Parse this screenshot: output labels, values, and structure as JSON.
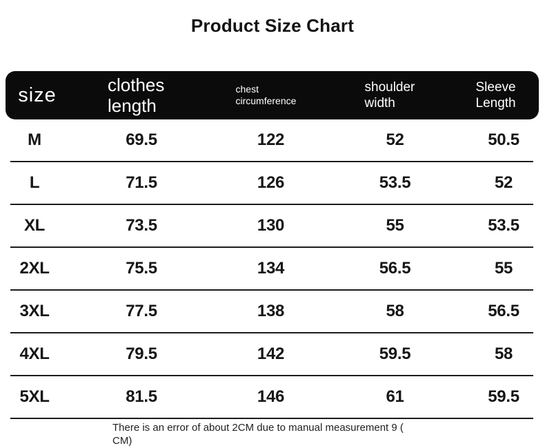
{
  "title": "Product Size Chart",
  "table": {
    "headers": [
      {
        "label": "size"
      },
      {
        "label": "clothes length"
      },
      {
        "label": "chest circumference"
      },
      {
        "label": "shoulder width"
      },
      {
        "label": "Sleeve Length"
      }
    ],
    "rows": [
      {
        "size": "M",
        "clothes_length": "69.5",
        "chest_circumference": "122",
        "shoulder_width": "52",
        "sleeve_length": "50.5"
      },
      {
        "size": "L",
        "clothes_length": "71.5",
        "chest_circumference": "126",
        "shoulder_width": "53.5",
        "sleeve_length": "52"
      },
      {
        "size": "XL",
        "clothes_length": "73.5",
        "chest_circumference": "130",
        "shoulder_width": "55",
        "sleeve_length": "53.5"
      },
      {
        "size": "2XL",
        "clothes_length": "75.5",
        "chest_circumference": "134",
        "shoulder_width": "56.5",
        "sleeve_length": "55"
      },
      {
        "size": "3XL",
        "clothes_length": "77.5",
        "chest_circumference": "138",
        "shoulder_width": "58",
        "sleeve_length": "56.5"
      },
      {
        "size": "4XL",
        "clothes_length": "79.5",
        "chest_circumference": "142",
        "shoulder_width": "59.5",
        "sleeve_length": "58"
      },
      {
        "size": "5XL",
        "clothes_length": "81.5",
        "chest_circumference": "146",
        "shoulder_width": "61",
        "sleeve_length": "59.5"
      }
    ]
  },
  "footer": {
    "line1": "There is an error of about 2CM due to manual measurement 9 (",
    "line2": "CM)"
  },
  "colors": {
    "background": "#ffffff",
    "header_bg": "#0b0b0b",
    "header_text": "#ffffff",
    "body_text": "#161616",
    "divider": "#1b1b1b"
  }
}
